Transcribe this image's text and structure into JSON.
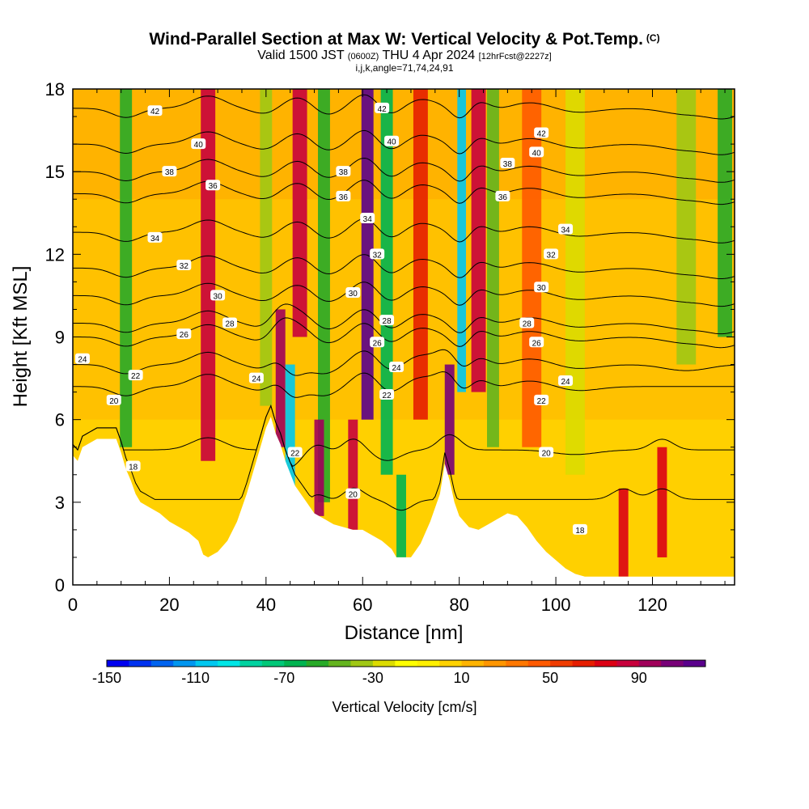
{
  "header": {
    "title": "Wind-Parallel Section at Max W: Vertical Velocity & Pot.Temp.",
    "title_tag": "(C)",
    "subtitle_a": "Valid 1500 JST",
    "subtitle_b": "(0600Z)",
    "subtitle_c": "THU 4 Apr 2024",
    "subtitle_d": "[12hrFcst@2227z]",
    "params": "i,j,k,angle=71,74,24,91"
  },
  "chart_data": {
    "type": "heatmap",
    "title": "Wind-Parallel Section at Max W: Vertical Velocity & Pot.Temp.",
    "xlabel": "Distance [nm]",
    "ylabel": "Height [Kft MSL]",
    "xlim": [
      0,
      137
    ],
    "ylim": [
      0,
      18
    ],
    "xticks": [
      0,
      20,
      40,
      60,
      80,
      100,
      120
    ],
    "yticks": [
      0,
      3,
      6,
      9,
      12,
      15,
      18
    ],
    "colorbar": {
      "label": "Vertical Velocity [cm/s]",
      "ticks": [
        -150,
        -110,
        -70,
        -30,
        10,
        50,
        90
      ],
      "colors": [
        "#0000f0",
        "#0032f0",
        "#0064f0",
        "#0096f0",
        "#00c8f0",
        "#00e6e6",
        "#00d2a0",
        "#00c878",
        "#00b450",
        "#28aa28",
        "#64b41e",
        "#a0c814",
        "#dcdc00",
        "#ffff00",
        "#fff000",
        "#ffd200",
        "#ffb400",
        "#ff9600",
        "#ff7800",
        "#ff5a00",
        "#f03c00",
        "#e61e00",
        "#dc0014",
        "#c8003c",
        "#a0005a",
        "#780078",
        "#5a008c"
      ]
    },
    "terrain_kft": [
      [
        0,
        4.7
      ],
      [
        1,
        4.5
      ],
      [
        2,
        5.0
      ],
      [
        5,
        5.3
      ],
      [
        9,
        5.3
      ],
      [
        10,
        4.8
      ],
      [
        11,
        4.2
      ],
      [
        12,
        3.8
      ],
      [
        13,
        3.3
      ],
      [
        14,
        3.0
      ],
      [
        16,
        2.8
      ],
      [
        18,
        2.6
      ],
      [
        20,
        2.3
      ],
      [
        22,
        2.1
      ],
      [
        24,
        1.9
      ],
      [
        26,
        1.6
      ],
      [
        27,
        1.1
      ],
      [
        28,
        1.0
      ],
      [
        30,
        1.2
      ],
      [
        32,
        1.6
      ],
      [
        34,
        2.3
      ],
      [
        36,
        3.3
      ],
      [
        38,
        4.5
      ],
      [
        40,
        5.7
      ],
      [
        41,
        6.1
      ],
      [
        42,
        5.5
      ],
      [
        43,
        5.1
      ],
      [
        44,
        4.5
      ],
      [
        46,
        3.6
      ],
      [
        48,
        3.1
      ],
      [
        50,
        2.6
      ],
      [
        52,
        2.4
      ],
      [
        54,
        2.2
      ],
      [
        56,
        2.1
      ],
      [
        58,
        2.0
      ],
      [
        60,
        2.0
      ],
      [
        62,
        1.8
      ],
      [
        64,
        1.6
      ],
      [
        66,
        1.3
      ],
      [
        67,
        1.0
      ],
      [
        70,
        1.0
      ],
      [
        72,
        1.5
      ],
      [
        74,
        2.3
      ],
      [
        76,
        3.3
      ],
      [
        77,
        4.4
      ],
      [
        78,
        3.8
      ],
      [
        79,
        3.0
      ],
      [
        80,
        2.5
      ],
      [
        82,
        2.1
      ],
      [
        84,
        2.0
      ],
      [
        86,
        2.2
      ],
      [
        88,
        2.4
      ],
      [
        90,
        2.6
      ],
      [
        92,
        2.5
      ],
      [
        94,
        2.1
      ],
      [
        96,
        1.6
      ],
      [
        98,
        1.2
      ],
      [
        100,
        0.9
      ],
      [
        102,
        0.6
      ],
      [
        104,
        0.4
      ],
      [
        106,
        0.3
      ],
      [
        110,
        0.3
      ],
      [
        120,
        0.3
      ],
      [
        130,
        0.3
      ],
      [
        137,
        0.3
      ]
    ],
    "vertical_velocity_features": [
      {
        "x": 11,
        "width": 2.5,
        "ymin": 5,
        "ymax": 18,
        "w": -60
      },
      {
        "x": 28,
        "width": 3,
        "ymin": 4.5,
        "ymax": 18,
        "w": 80
      },
      {
        "x": 40,
        "width": 2.5,
        "ymin": 6.5,
        "ymax": 18,
        "w": -40
      },
      {
        "x": 43,
        "width": 2,
        "ymin": 5,
        "ymax": 10,
        "w": 95
      },
      {
        "x": 45,
        "width": 2,
        "ymin": 2.5,
        "ymax": 8,
        "w": -110
      },
      {
        "x": 47,
        "width": 3,
        "ymin": 9,
        "ymax": 18,
        "w": 80
      },
      {
        "x": 52,
        "width": 2.5,
        "ymin": 3,
        "ymax": 18,
        "w": -60
      },
      {
        "x": 51,
        "width": 2,
        "ymin": 2.5,
        "ymax": 6,
        "w": 90
      },
      {
        "x": 58,
        "width": 2,
        "ymin": 2,
        "ymax": 6,
        "w": 80
      },
      {
        "x": 61,
        "width": 2.5,
        "ymin": 6,
        "ymax": 18,
        "w": 110
      },
      {
        "x": 65,
        "width": 2.5,
        "ymin": 4,
        "ymax": 18,
        "w": -70
      },
      {
        "x": 68,
        "width": 2,
        "ymin": 1,
        "ymax": 4,
        "w": -70
      },
      {
        "x": 72,
        "width": 3,
        "ymin": 6,
        "ymax": 18,
        "w": 60
      },
      {
        "x": 78,
        "width": 2,
        "ymin": 4,
        "ymax": 8,
        "w": 100
      },
      {
        "x": 80.5,
        "width": 1.8,
        "ymin": 7,
        "ymax": 18,
        "w": -110
      },
      {
        "x": 84,
        "width": 3,
        "ymin": 7,
        "ymax": 18,
        "w": 85
      },
      {
        "x": 87,
        "width": 2.5,
        "ymin": 5,
        "ymax": 18,
        "w": -50
      },
      {
        "x": 95,
        "width": 4,
        "ymin": 5,
        "ymax": 18,
        "w": 40
      },
      {
        "x": 104,
        "width": 4,
        "ymin": 4,
        "ymax": 18,
        "w": -30
      },
      {
        "x": 114,
        "width": 2,
        "ymin": 0.3,
        "ymax": 3.5,
        "w": 70
      },
      {
        "x": 122,
        "width": 2,
        "ymin": 1,
        "ymax": 5,
        "w": 70
      },
      {
        "x": 127,
        "width": 4,
        "ymin": 8,
        "ymax": 18,
        "w": -40
      },
      {
        "x": 135,
        "width": 3,
        "ymin": 9,
        "ymax": 18,
        "w": -60
      }
    ],
    "isentropes": [
      {
        "theta": 18,
        "y": 3.1
      },
      {
        "theta": 20,
        "y": 4.9
      },
      {
        "theta": 22,
        "y": 7.2
      },
      {
        "theta": 24,
        "y": 8.0
      },
      {
        "theta": 26,
        "y": 9.0
      },
      {
        "theta": 28,
        "y": 9.5
      },
      {
        "theta": 30,
        "y": 10.5
      },
      {
        "theta": 32,
        "y": 11.5
      },
      {
        "theta": 34,
        "y": 12.8
      },
      {
        "theta": 36,
        "y": 14.2
      },
      {
        "theta": 38,
        "y": 15.0
      },
      {
        "theta": 40,
        "y": 16.0
      },
      {
        "theta": 42,
        "y": 17.3
      }
    ],
    "contour_labels": [
      {
        "text": "42",
        "x": 17,
        "y": 17.2
      },
      {
        "text": "40",
        "x": 26,
        "y": 16.0
      },
      {
        "text": "38",
        "x": 20,
        "y": 15.0
      },
      {
        "text": "36",
        "x": 29,
        "y": 14.5
      },
      {
        "text": "34",
        "x": 17,
        "y": 12.6
      },
      {
        "text": "32",
        "x": 23,
        "y": 11.6
      },
      {
        "text": "30",
        "x": 30,
        "y": 10.5
      },
      {
        "text": "28",
        "x": 32.5,
        "y": 9.5
      },
      {
        "text": "26",
        "x": 23,
        "y": 9.1
      },
      {
        "text": "24",
        "x": 2,
        "y": 8.2
      },
      {
        "text": "22",
        "x": 13,
        "y": 7.6
      },
      {
        "text": "20",
        "x": 8.5,
        "y": 6.7
      },
      {
        "text": "18",
        "x": 12.5,
        "y": 4.3
      },
      {
        "text": "24",
        "x": 38,
        "y": 7.5
      },
      {
        "text": "22",
        "x": 46,
        "y": 4.8
      },
      {
        "text": "38",
        "x": 56,
        "y": 15.0
      },
      {
        "text": "36",
        "x": 56,
        "y": 14.1
      },
      {
        "text": "34",
        "x": 61,
        "y": 13.3
      },
      {
        "text": "32",
        "x": 63,
        "y": 12.0
      },
      {
        "text": "30",
        "x": 58,
        "y": 10.6
      },
      {
        "text": "28",
        "x": 65,
        "y": 9.6
      },
      {
        "text": "26",
        "x": 63,
        "y": 8.8
      },
      {
        "text": "24",
        "x": 67,
        "y": 7.9
      },
      {
        "text": "22",
        "x": 65,
        "y": 6.9
      },
      {
        "text": "20",
        "x": 58,
        "y": 3.3
      },
      {
        "text": "42",
        "x": 64,
        "y": 17.3
      },
      {
        "text": "40",
        "x": 66,
        "y": 16.1
      },
      {
        "text": "42",
        "x": 97,
        "y": 16.4
      },
      {
        "text": "40",
        "x": 96,
        "y": 15.7
      },
      {
        "text": "38",
        "x": 90,
        "y": 15.3
      },
      {
        "text": "36",
        "x": 89,
        "y": 14.1
      },
      {
        "text": "34",
        "x": 102,
        "y": 12.9
      },
      {
        "text": "32",
        "x": 99,
        "y": 12.0
      },
      {
        "text": "30",
        "x": 97,
        "y": 10.8
      },
      {
        "text": "28",
        "x": 94,
        "y": 9.5
      },
      {
        "text": "26",
        "x": 96,
        "y": 8.8
      },
      {
        "text": "24",
        "x": 102,
        "y": 7.4
      },
      {
        "text": "22",
        "x": 97,
        "y": 6.7
      },
      {
        "text": "20",
        "x": 98,
        "y": 4.8
      },
      {
        "text": "18",
        "x": 105,
        "y": 2.0
      }
    ]
  }
}
